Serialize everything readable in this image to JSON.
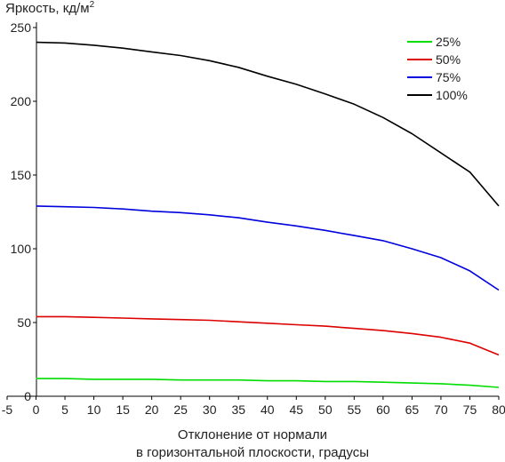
{
  "chart_data": {
    "type": "line",
    "ylabel": {
      "main": "Яркость, кд/м",
      "sup": "2"
    },
    "xlabel": [
      "Отклонение от нормали",
      "в горизонтальной плоскости, градусы"
    ],
    "xlim": [
      -5,
      80
    ],
    "ylim": [
      0,
      250
    ],
    "x_ticks": [
      -5,
      0,
      5,
      10,
      15,
      20,
      25,
      30,
      35,
      40,
      45,
      50,
      55,
      60,
      65,
      70,
      75,
      80
    ],
    "y_ticks": [
      0,
      50,
      100,
      150,
      200,
      250
    ],
    "grid": false,
    "legend_position": "top-right",
    "x": [
      0,
      5,
      10,
      15,
      20,
      25,
      30,
      35,
      40,
      45,
      50,
      55,
      60,
      65,
      70,
      75,
      80
    ],
    "series": [
      {
        "name": "25%",
        "color": "#00dd00",
        "values": [
          12,
          12,
          11.5,
          11.5,
          11.5,
          11,
          11,
          11,
          10.5,
          10.5,
          10,
          10,
          9.5,
          9,
          8.5,
          7.5,
          6
        ]
      },
      {
        "name": "50%",
        "color": "#dd0000",
        "values": [
          54,
          54,
          53.5,
          53,
          52.5,
          52,
          51.5,
          50.5,
          49.5,
          48.5,
          47.5,
          46,
          44.5,
          42.5,
          40,
          36,
          28
        ]
      },
      {
        "name": "75%",
        "color": "#0000dd",
        "values": [
          129,
          128.5,
          128,
          127,
          125.5,
          124.5,
          123,
          121,
          118,
          115.5,
          112.5,
          109,
          105.5,
          100,
          94,
          85,
          72
        ]
      },
      {
        "name": "100%",
        "color": "#000000",
        "values": [
          240,
          239.5,
          238,
          236,
          233.5,
          231,
          227.5,
          223,
          217,
          211.5,
          205,
          198,
          189,
          178,
          165,
          152,
          129
        ]
      }
    ]
  }
}
